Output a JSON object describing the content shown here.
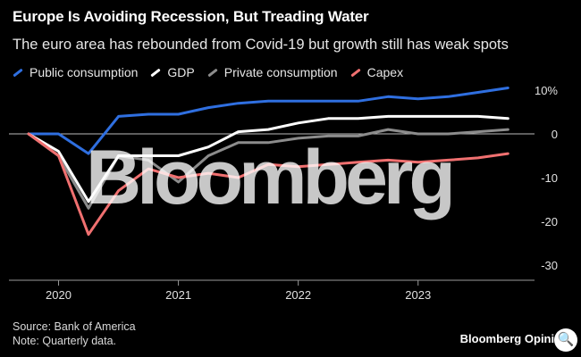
{
  "title": "Europe Is Avoiding Recession, But Treading Water",
  "subtitle": "The euro area has rebounded from Covid-19 but growth still has weak spots",
  "watermark": "Bloomberg",
  "footer": {
    "source": "Source: Bank of America",
    "note": "Note: Quarterly data."
  },
  "brand": {
    "name": "Bloomberg",
    "suffix": "Opinion"
  },
  "zoom_icon": "🔍",
  "chart_data": {
    "type": "line",
    "title": "Europe Is Avoiding Recession, But Treading Water",
    "xlabel": "",
    "ylabel": "",
    "x": [
      2019.75,
      2020.0,
      2020.25,
      2020.5,
      2020.75,
      2021.0,
      2021.25,
      2021.5,
      2021.75,
      2022.0,
      2022.25,
      2022.5,
      2022.75,
      2023.0,
      2023.25,
      2023.5,
      2023.75
    ],
    "xlim": [
      2019.75,
      2023.8
    ],
    "ylim": [
      -30,
      10
    ],
    "x_ticks": [
      2020,
      2021,
      2022,
      2023
    ],
    "x_tick_labels": [
      "2020",
      "2021",
      "2022",
      "2023"
    ],
    "y_ticks": [
      10,
      0,
      -10,
      -20,
      -30
    ],
    "y_tick_labels": [
      "10%",
      "0",
      "-10",
      "-20",
      "-30"
    ],
    "zero_line": 0,
    "series": [
      {
        "name": "Public consumption",
        "color": "#2f6fe0",
        "values": [
          0,
          0,
          -4.5,
          4,
          4.5,
          4.5,
          6,
          7,
          7.5,
          7.5,
          7.5,
          7.5,
          8.5,
          8,
          8.5,
          9.5,
          10.5
        ]
      },
      {
        "name": "GDP",
        "color": "#ffffff",
        "values": [
          0,
          -4,
          -15.5,
          -5,
          -5,
          -5,
          -3,
          0.5,
          1,
          2.5,
          3.5,
          3.5,
          4,
          4,
          4,
          4,
          3.5
        ]
      },
      {
        "name": "Private consumption",
        "color": "#8c8c8c",
        "values": [
          0,
          -5,
          -17,
          -5,
          -6,
          -11,
          -5,
          -2,
          -2,
          -1,
          -0.5,
          -0.5,
          1,
          0,
          0,
          0.5,
          1
        ]
      },
      {
        "name": "Capex",
        "color": "#f07070",
        "values": [
          0,
          -5,
          -23,
          -13,
          -8,
          -10,
          -9,
          -10,
          -7,
          -7.5,
          -7,
          -6.5,
          -6,
          -6.5,
          -6,
          -5.5,
          -4.5
        ]
      }
    ],
    "legend_position": "top-left"
  }
}
